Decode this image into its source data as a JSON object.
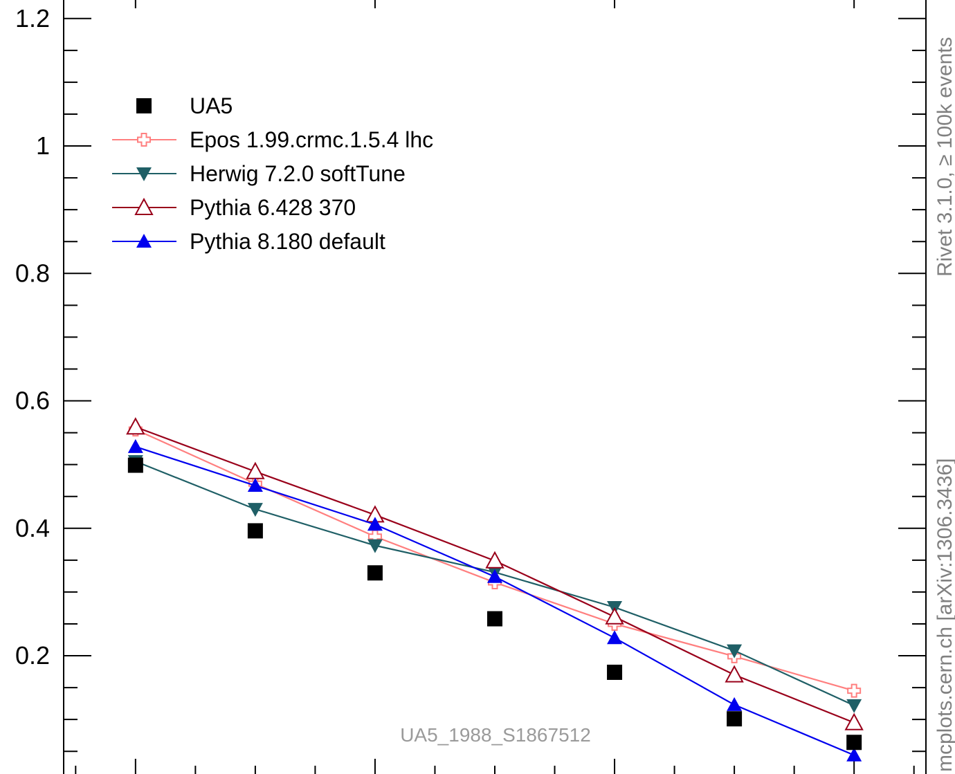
{
  "chart_data": {
    "type": "scatter",
    "title": "",
    "xlabel": "",
    "ylabel": "",
    "x": [
      1,
      2,
      3,
      4,
      5,
      6,
      7
    ],
    "xlim": [
      0.4,
      7.6
    ],
    "ylim": [
      0.0,
      1.25
    ],
    "y_ticks": [
      {
        "value": 0.2,
        "label": "0.2"
      },
      {
        "value": 0.4,
        "label": "0.4"
      },
      {
        "value": 0.6,
        "label": "0.6"
      },
      {
        "value": 0.8,
        "label": "0.8"
      },
      {
        "value": 1.0,
        "label": "1"
      },
      {
        "value": 1.2,
        "label": "1.2"
      }
    ],
    "grid": false,
    "legend_position": "top-left",
    "series": [
      {
        "name": "UA5",
        "marker": "square",
        "line": false,
        "color": "#000000",
        "values": [
          0.499,
          0.396,
          0.33,
          0.258,
          0.174,
          0.101,
          0.064
        ]
      },
      {
        "name": "Epos 1.99.crmc.1.5.4 lhc",
        "marker": "cross-open",
        "line": true,
        "color": "#ff7f7f",
        "values": [
          0.555,
          0.47,
          0.387,
          0.315,
          0.25,
          0.199,
          0.145
        ]
      },
      {
        "name": "Herwig 7.2.0 softTune",
        "marker": "triangle-down",
        "line": true,
        "color": "#1f5f66",
        "values": [
          0.505,
          0.43,
          0.373,
          0.331,
          0.276,
          0.208,
          0.122
        ]
      },
      {
        "name": "Pythia 6.428 370",
        "marker": "triangle-open",
        "line": true,
        "color": "#99001a",
        "values": [
          0.559,
          0.489,
          0.421,
          0.349,
          0.261,
          0.17,
          0.095
        ]
      },
      {
        "name": "Pythia 8.180 default",
        "marker": "triangle-up",
        "line": true,
        "color": "#0000ee",
        "values": [
          0.528,
          0.467,
          0.406,
          0.324,
          0.228,
          0.123,
          0.044
        ]
      }
    ],
    "annotations": {
      "analysis_id": "UA5_1988_S1867512",
      "rivet_text": "Rivet 3.1.0, ≥ 100k events",
      "source_text": "mcplots.cern.ch [arXiv:1306.3436]"
    }
  }
}
